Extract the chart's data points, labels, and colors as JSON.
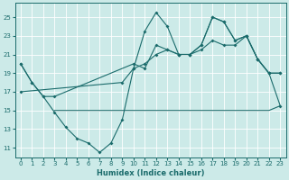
{
  "xlabel": "Humidex (Indice chaleur)",
  "bg_color": "#cceae8",
  "line_color": "#1a6b6b",
  "grid_color": "#ffffff",
  "xlim": [
    -0.5,
    23.5
  ],
  "ylim": [
    10.0,
    26.5
  ],
  "xticks": [
    0,
    1,
    2,
    3,
    4,
    5,
    6,
    7,
    8,
    9,
    10,
    11,
    12,
    13,
    14,
    15,
    16,
    17,
    18,
    19,
    20,
    21,
    22,
    23
  ],
  "yticks": [
    11,
    13,
    15,
    17,
    19,
    21,
    23,
    25
  ],
  "s1_x": [
    0,
    1,
    2,
    3,
    4,
    5,
    6,
    7,
    8,
    9,
    10,
    11,
    12,
    13,
    14,
    15,
    16,
    17,
    18,
    19,
    20,
    21,
    22,
    23
  ],
  "s1_y": [
    20.0,
    18.0,
    16.5,
    14.8,
    13.2,
    12.0,
    11.5,
    10.5,
    11.5,
    14.0,
    19.5,
    23.5,
    25.5,
    24.0,
    21.0,
    21.0,
    21.5,
    22.5,
    22.0,
    22.0,
    23.0,
    20.5,
    19.0,
    19.0
  ],
  "s2_x": [
    3,
    4,
    5,
    6,
    7,
    8,
    9,
    10,
    11,
    12,
    13,
    14,
    15,
    16,
    17,
    18,
    19,
    20,
    21,
    22,
    23
  ],
  "s2_y": [
    15.0,
    15.0,
    15.0,
    15.0,
    15.0,
    15.0,
    15.0,
    15.0,
    15.0,
    15.0,
    15.0,
    15.0,
    15.0,
    15.0,
    15.0,
    15.0,
    15.0,
    15.0,
    15.0,
    15.0,
    15.5
  ],
  "s3_x": [
    0,
    1,
    2,
    3,
    10,
    11,
    12,
    13,
    14,
    15,
    16,
    17,
    18,
    19,
    20,
    21,
    22,
    23
  ],
  "s3_y": [
    20.0,
    18.0,
    16.5,
    16.5,
    20.0,
    19.5,
    22.0,
    21.5,
    21.0,
    21.0,
    22.0,
    25.0,
    24.5,
    22.5,
    23.0,
    20.5,
    19.0,
    19.0
  ],
  "s4_x": [
    0,
    9,
    10,
    11,
    12,
    13,
    14,
    15,
    16,
    17,
    18,
    19,
    20,
    21,
    22,
    23
  ],
  "s4_y": [
    17.0,
    18.0,
    19.5,
    20.0,
    21.0,
    21.5,
    21.0,
    21.0,
    22.0,
    25.0,
    24.5,
    22.5,
    23.0,
    20.5,
    19.0,
    15.5
  ]
}
